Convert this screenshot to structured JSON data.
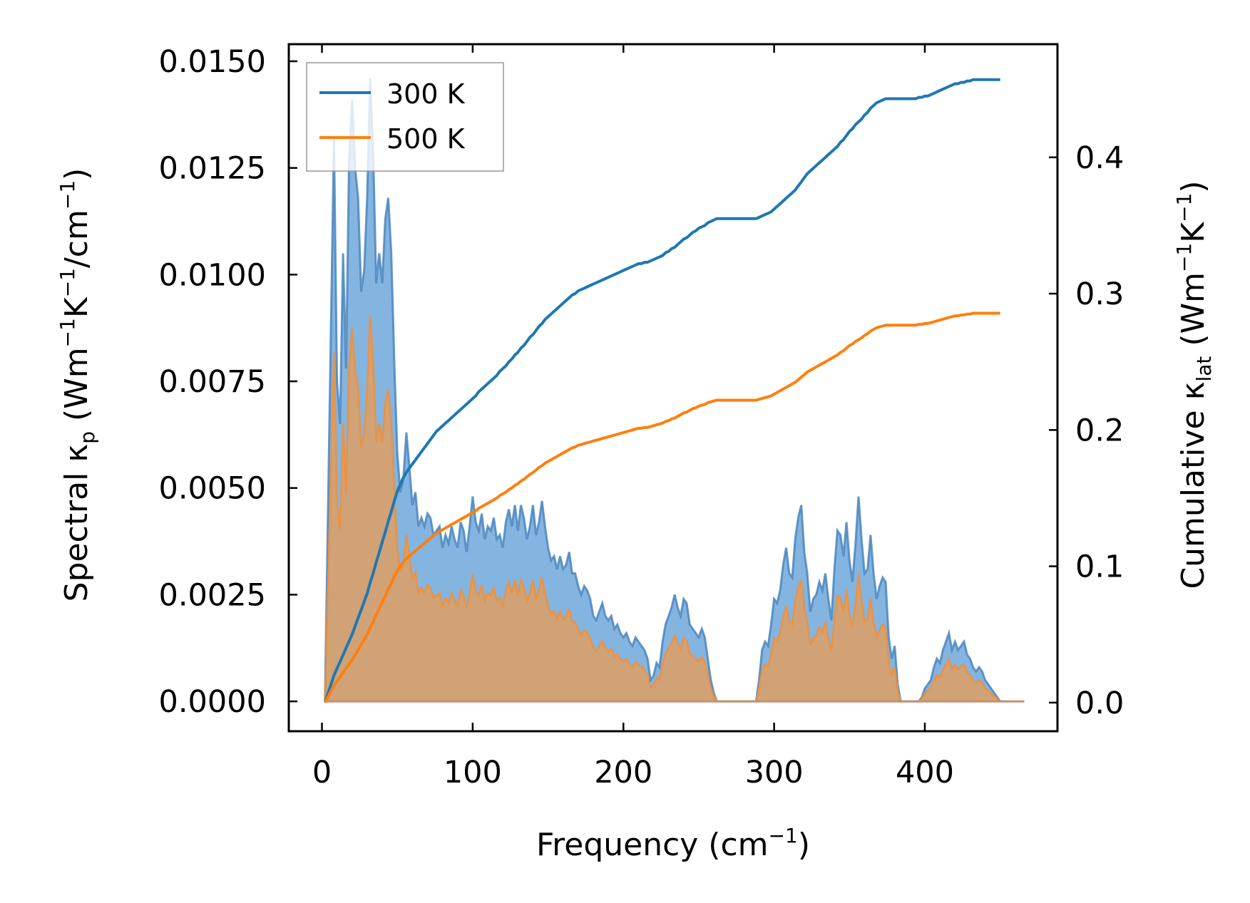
{
  "chart_data": {
    "type": "line",
    "xlabel": {
      "main": "Frequency (cm",
      "sup": "−1",
      "close": ")"
    },
    "ylabel_left": {
      "t1": "Spectral κ",
      "sub": "p",
      "t2": " (Wm",
      "sup1": "−1",
      "t3": "K",
      "sup2": "−1",
      "t4": "/cm",
      "sup3": "−1",
      "t5": ")"
    },
    "ylabel_right": {
      "t1": "Cumulative κ",
      "sub": "lat",
      "t2": " (Wm",
      "sup1": "−1",
      "t3": "K",
      "sup2": "−1",
      "t4": ")"
    },
    "xlim": [
      -22,
      488
    ],
    "ylim_left": [
      -0.0007,
      0.0154
    ],
    "ylim_right": [
      -0.021,
      0.483
    ],
    "x_ticks": [
      0,
      100,
      200,
      300,
      400
    ],
    "x_tick_labels": [
      "0",
      "100",
      "200",
      "300",
      "400"
    ],
    "y_left_ticks": [
      0,
      0.0025,
      0.005,
      0.0075,
      0.01,
      0.0125,
      0.015
    ],
    "y_left_tick_labels": [
      "0.0000",
      "0.0025",
      "0.0050",
      "0.0075",
      "0.0100",
      "0.0125",
      "0.0150"
    ],
    "y_right_ticks": [
      0,
      0.1,
      0.2,
      0.3,
      0.4
    ],
    "y_right_tick_labels": [
      "0.0",
      "0.1",
      "0.2",
      "0.3",
      "0.4"
    ],
    "legend": {
      "position": "upper-left"
    },
    "colors": {
      "300K": "#1f77b4",
      "500K": "#ff7f0e",
      "fill300": "#5b9bd5",
      "fill500": "#d8a06a"
    },
    "x": [
      2,
      8,
      10,
      12,
      14,
      16,
      18,
      20,
      22,
      24,
      26,
      28,
      30,
      32,
      34,
      36,
      38,
      40,
      42,
      44,
      46,
      48,
      50,
      52,
      54,
      56,
      58,
      60,
      62,
      64,
      66,
      68,
      70,
      72,
      74,
      76,
      78,
      80,
      82,
      84,
      86,
      88,
      90,
      92,
      94,
      96,
      98,
      100,
      102,
      104,
      106,
      108,
      110,
      112,
      114,
      116,
      118,
      120,
      122,
      124,
      126,
      128,
      130,
      132,
      134,
      136,
      138,
      140,
      142,
      144,
      146,
      148,
      150,
      152,
      154,
      156,
      158,
      160,
      162,
      164,
      166,
      168,
      170,
      172,
      174,
      176,
      178,
      180,
      182,
      184,
      186,
      188,
      190,
      192,
      194,
      196,
      198,
      200,
      202,
      204,
      206,
      208,
      210,
      212,
      214,
      216,
      218,
      220,
      222,
      224,
      226,
      228,
      230,
      232,
      234,
      236,
      238,
      240,
      242,
      244,
      246,
      248,
      250,
      252,
      254,
      256,
      258,
      260,
      262,
      264,
      266,
      268,
      270,
      272,
      274,
      276,
      278,
      280,
      282,
      284,
      286,
      288,
      290,
      292,
      294,
      296,
      298,
      300,
      302,
      304,
      306,
      308,
      310,
      312,
      314,
      316,
      318,
      320,
      322,
      324,
      326,
      328,
      330,
      332,
      334,
      336,
      338,
      340,
      342,
      344,
      346,
      348,
      350,
      352,
      354,
      356,
      358,
      360,
      362,
      364,
      366,
      368,
      370,
      372,
      374,
      376,
      378,
      380,
      382,
      384,
      386,
      388,
      390,
      392,
      394,
      396,
      398,
      400,
      402,
      404,
      406,
      408,
      410,
      412,
      414,
      416,
      418,
      420,
      422,
      424,
      426,
      428,
      430,
      432,
      434,
      436,
      438,
      440,
      442,
      444,
      446,
      448,
      450,
      452,
      454,
      456,
      458,
      460,
      462,
      464,
      466
    ],
    "series": [
      {
        "name": "300 K",
        "spectral": [
          0,
          0.0132,
          0.0075,
          0.0065,
          0.0105,
          0.0078,
          0.0126,
          0.0141,
          0.0125,
          0.0118,
          0.0096,
          0.0101,
          0.0118,
          0.0146,
          0.0128,
          0.0098,
          0.0105,
          0.0098,
          0.0113,
          0.0118,
          0.0105,
          0.0079,
          0.0058,
          0.0049,
          0.0052,
          0.0063,
          0.0055,
          0.0046,
          0.0049,
          0.0041,
          0.0043,
          0.0041,
          0.0044,
          0.0043,
          0.0039,
          0.004,
          0.0041,
          0.0036,
          0.0039,
          0.0037,
          0.0041,
          0.0038,
          0.0036,
          0.0042,
          0.004,
          0.0035,
          0.0041,
          0.0048,
          0.0042,
          0.004,
          0.0044,
          0.0038,
          0.0041,
          0.004,
          0.0043,
          0.0038,
          0.0039,
          0.0036,
          0.0042,
          0.0045,
          0.0041,
          0.0046,
          0.004,
          0.0046,
          0.0043,
          0.0038,
          0.0041,
          0.0046,
          0.0039,
          0.0042,
          0.0047,
          0.0041,
          0.0036,
          0.0033,
          0.0034,
          0.0031,
          0.0034,
          0.0031,
          0.0032,
          0.0035,
          0.003,
          0.003,
          0.0027,
          0.0025,
          0.0027,
          0.0026,
          0.0024,
          0.002,
          0.0019,
          0.0021,
          0.0023,
          0.002,
          0.0019,
          0.002,
          0.0017,
          0.0018,
          0.0016,
          0.0015,
          0.0016,
          0.0014,
          0.0013,
          0.0015,
          0.0014,
          0.0013,
          0.0012,
          0.001,
          0.0005,
          0.0006,
          0.0009,
          0.0008,
          0.0014,
          0.0018,
          0.002,
          0.0022,
          0.0025,
          0.0022,
          0.002,
          0.0024,
          0.0023,
          0.0018,
          0.0017,
          0.0016,
          0.0015,
          0.0017,
          0.0015,
          0.001,
          0.0005,
          0.0002,
          0,
          0,
          0,
          0,
          0,
          0,
          0,
          0,
          0,
          0,
          0,
          0,
          0,
          0,
          0.0005,
          0.0012,
          0.0014,
          0.0013,
          0.0018,
          0.0024,
          0.0023,
          0.0026,
          0.0032,
          0.0036,
          0.003,
          0.0029,
          0.0038,
          0.0043,
          0.0046,
          0.0035,
          0.003,
          0.0021,
          0.0024,
          0.0025,
          0.0028,
          0.0026,
          0.003,
          0.0024,
          0.0019,
          0.0031,
          0.004,
          0.0039,
          0.0034,
          0.0042,
          0.0033,
          0.0028,
          0.0037,
          0.0048,
          0.0038,
          0.003,
          0.0031,
          0.0039,
          0.003,
          0.0024,
          0.0027,
          0.0029,
          0.0028,
          0.0015,
          0.001,
          0.0013,
          0.0004,
          0,
          0,
          0,
          0,
          0,
          0,
          0,
          0.0001,
          0.0003,
          0.0004,
          0.0005,
          0.0008,
          0.001,
          0.0009,
          0.0012,
          0.0014,
          0.0016,
          0.0012,
          0.0014,
          0.0012,
          0.0013,
          0.0014,
          0.0011,
          0.001,
          0.0008,
          0.0007,
          0.0008,
          0.0007,
          0.0005,
          0.0004,
          0.0003,
          0.0002,
          0.0001,
          0,
          0,
          0
        ],
        "cumulative": [
          0,
          0.02,
          0.025,
          0.03,
          0.035,
          0.04,
          0.045,
          0.05,
          0.056,
          0.062,
          0.068,
          0.074,
          0.08,
          0.088,
          0.095,
          0.103,
          0.11,
          0.118,
          0.125,
          0.133,
          0.14,
          0.148,
          0.155,
          0.16,
          0.165,
          0.169,
          0.172,
          0.175,
          0.178,
          0.181,
          0.184,
          0.187,
          0.19,
          0.193,
          0.196,
          0.199,
          0.201,
          0.203,
          0.205,
          0.207,
          0.209,
          0.211,
          0.213,
          0.215,
          0.217,
          0.219,
          0.221,
          0.223,
          0.225,
          0.228,
          0.23,
          0.232,
          0.234,
          0.236,
          0.238,
          0.24,
          0.243,
          0.245,
          0.247,
          0.25,
          0.252,
          0.255,
          0.257,
          0.26,
          0.262,
          0.265,
          0.268,
          0.27,
          0.273,
          0.276,
          0.278,
          0.281,
          0.283,
          0.285,
          0.287,
          0.289,
          0.291,
          0.293,
          0.295,
          0.297,
          0.299,
          0.3,
          0.302,
          0.303,
          0.304,
          0.305,
          0.306,
          0.307,
          0.308,
          0.309,
          0.31,
          0.311,
          0.312,
          0.313,
          0.314,
          0.315,
          0.316,
          0.317,
          0.318,
          0.319,
          0.32,
          0.321,
          0.322,
          0.322,
          0.323,
          0.323,
          0.324,
          0.325,
          0.326,
          0.327,
          0.328,
          0.33,
          0.331,
          0.333,
          0.334,
          0.336,
          0.338,
          0.34,
          0.341,
          0.343,
          0.345,
          0.346,
          0.348,
          0.349,
          0.35,
          0.352,
          0.353,
          0.354,
          0.355,
          0.355,
          0.355,
          0.355,
          0.355,
          0.355,
          0.355,
          0.355,
          0.355,
          0.355,
          0.355,
          0.355,
          0.355,
          0.355,
          0.356,
          0.357,
          0.358,
          0.359,
          0.36,
          0.362,
          0.364,
          0.366,
          0.368,
          0.37,
          0.372,
          0.374,
          0.376,
          0.379,
          0.382,
          0.385,
          0.388,
          0.39,
          0.392,
          0.394,
          0.396,
          0.398,
          0.4,
          0.402,
          0.404,
          0.406,
          0.408,
          0.411,
          0.413,
          0.416,
          0.419,
          0.421,
          0.424,
          0.426,
          0.428,
          0.431,
          0.433,
          0.436,
          0.438,
          0.44,
          0.441,
          0.442,
          0.443,
          0.443,
          0.443,
          0.443,
          0.443,
          0.443,
          0.443,
          0.443,
          0.443,
          0.443,
          0.443,
          0.444,
          0.444,
          0.445,
          0.445,
          0.446,
          0.447,
          0.448,
          0.449,
          0.45,
          0.451,
          0.452,
          0.453,
          0.454,
          0.454,
          0.455,
          0.455,
          0.456,
          0.456,
          0.457,
          0.457,
          0.457,
          0.457,
          0.457,
          0.457,
          0.457,
          0.457,
          0.457,
          0.457
        ]
      },
      {
        "name": "500 K",
        "spectral_ratio": 0.62,
        "cumulative_ratio": 0.625
      }
    ]
  }
}
